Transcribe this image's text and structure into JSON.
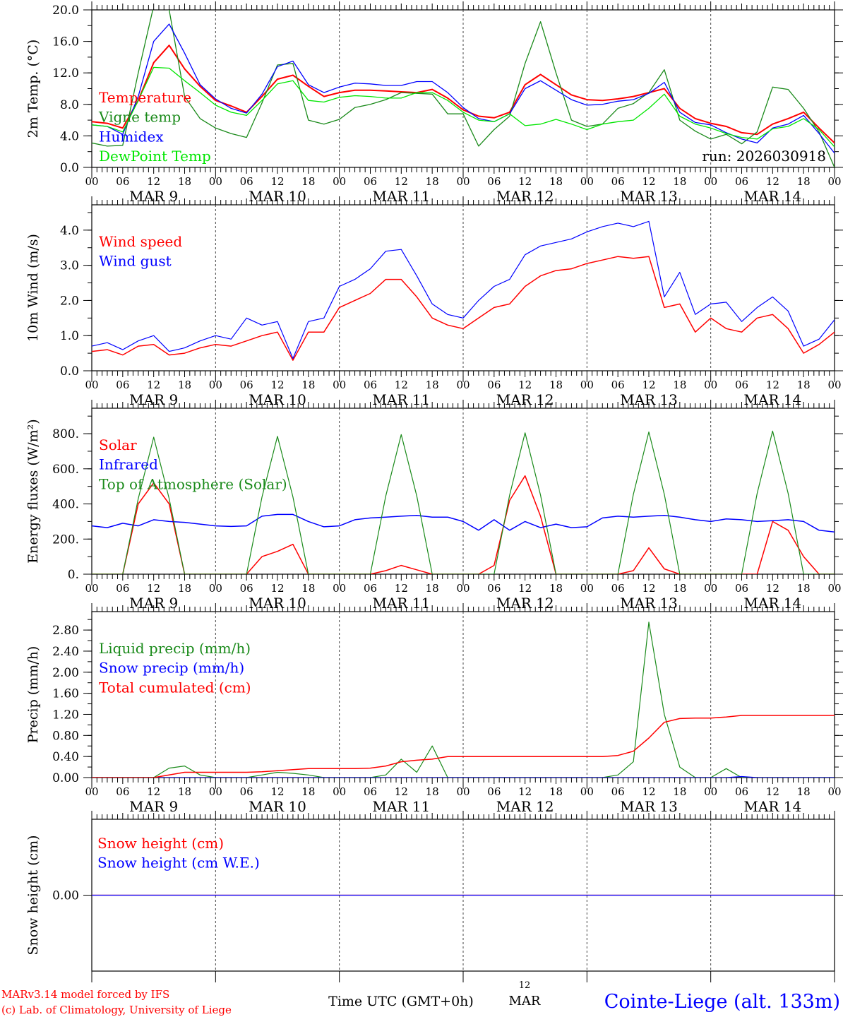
{
  "chart_data": {
    "type": "line",
    "x_hours": [
      0,
      3,
      6,
      9,
      12,
      15,
      18,
      21,
      24,
      27,
      30,
      33,
      36,
      39,
      42,
      45,
      48,
      51,
      54,
      57,
      60,
      63,
      66,
      69,
      72,
      75,
      78,
      81,
      84,
      87,
      90,
      93,
      96,
      99,
      102,
      105,
      108,
      111,
      114,
      117,
      120,
      123,
      126,
      129,
      132,
      135,
      138,
      141,
      144
    ],
    "x_tick_hours": [
      "00",
      "06",
      "12",
      "18"
    ],
    "days": [
      "MAR  9",
      "MAR 10",
      "MAR 11",
      "MAR 12",
      "MAR 13",
      "MAR 14"
    ],
    "xlabel": "Time UTC (GMT+0h)",
    "center_day_hour": "12",
    "center_day_month": "MAR",
    "panels": [
      {
        "ylabel": "2m Temp. (°C)",
        "ylim": [
          0,
          20
        ],
        "yticks": [
          0,
          4,
          8,
          12,
          16,
          20
        ],
        "ytick_labels": [
          "0.0",
          "4.0",
          "8.0",
          "12.0",
          "16.0",
          "20.0"
        ],
        "yminor": 2,
        "annotation": "run: 2026030918",
        "series": [
          {
            "name": "Temperature",
            "color": "#ff0000",
            "width": 2,
            "values": [
              5.8,
              5.6,
              5.0,
              8.5,
              13.3,
              15.5,
              12.5,
              10.3,
              8.5,
              7.8,
              7.0,
              9.0,
              11.2,
              11.7,
              10.3,
              9.0,
              9.5,
              9.8,
              9.8,
              9.7,
              9.6,
              9.5,
              9.9,
              8.8,
              7.3,
              6.5,
              6.3,
              7.0,
              10.5,
              11.8,
              10.5,
              9.2,
              8.6,
              8.5,
              8.7,
              9.0,
              9.5,
              10.0,
              7.5,
              6.2,
              5.6,
              5.2,
              4.4,
              4.2,
              5.5,
              6.2,
              7.0,
              5.0,
              3.1
            ]
          },
          {
            "name": "Vigne temp",
            "color": "#1a8a1a",
            "width": 1.3,
            "values": [
              3.1,
              2.7,
              2.8,
              12.0,
              20.5,
              20.0,
              9.0,
              6.2,
              5.0,
              4.3,
              3.8,
              8.2,
              13.0,
              13.2,
              6.0,
              5.5,
              6.1,
              7.6,
              8.0,
              8.6,
              9.5,
              9.4,
              9.3,
              6.8,
              6.8,
              2.7,
              4.8,
              6.5,
              13.2,
              18.5,
              12.0,
              6.0,
              5.2,
              5.5,
              7.5,
              8.1,
              9.5,
              12.4,
              6.0,
              4.6,
              3.6,
              4.2,
              3.0,
              4.5,
              10.2,
              9.9,
              7.5,
              4.5,
              0
            ]
          },
          {
            "name": "Humidex",
            "color": "#0000ff",
            "width": 1.3,
            "values": [
              5.4,
              5.2,
              4.2,
              9.0,
              16.0,
              18.2,
              14.5,
              10.5,
              8.7,
              7.5,
              6.9,
              9.3,
              12.8,
              13.5,
              10.5,
              9.5,
              10.2,
              10.7,
              10.6,
              10.4,
              10.4,
              10.9,
              10.9,
              9.5,
              7.6,
              6.2,
              5.8,
              6.8,
              10.0,
              11.0,
              9.8,
              8.6,
              7.9,
              8.0,
              8.4,
              8.6,
              9.4,
              10.8,
              7.0,
              5.7,
              5.4,
              4.4,
              3.6,
              3.1,
              5.0,
              5.5,
              6.6,
              4.3,
              1.8
            ]
          },
          {
            "name": "DewPoint Temp",
            "color": "#00e600",
            "width": 1.3,
            "values": [
              5.4,
              5.2,
              4.5,
              8.5,
              12.7,
              12.6,
              11.0,
              9.5,
              7.9,
              7.0,
              6.6,
              8.5,
              10.6,
              11.0,
              8.5,
              8.3,
              8.9,
              9.1,
              9.0,
              8.8,
              8.8,
              9.5,
              9.5,
              8.5,
              7.0,
              6.0,
              5.8,
              6.8,
              5.3,
              5.5,
              6.1,
              5.5,
              4.8,
              5.5,
              5.8,
              6.0,
              7.5,
              9.3,
              6.5,
              5.5,
              5.0,
              4.3,
              3.8,
              3.6,
              4.9,
              5.2,
              6.2,
              4.8,
              2.6
            ]
          }
        ]
      },
      {
        "ylabel": "10m Wind (m/s)",
        "ylim": [
          0,
          4.72
        ],
        "yticks": [
          0,
          1,
          2,
          3,
          4
        ],
        "ytick_labels": [
          "0.0",
          "1.0",
          "2.0",
          "3.0",
          "4.0"
        ],
        "yminor": 0.5,
        "series": [
          {
            "name": "Wind speed",
            "color": "#ff0000",
            "width": 1.5,
            "values": [
              0.55,
              0.6,
              0.45,
              0.7,
              0.75,
              0.45,
              0.5,
              0.65,
              0.75,
              0.7,
              0.85,
              1.0,
              1.1,
              0.3,
              1.1,
              1.1,
              1.8,
              2.0,
              2.2,
              2.6,
              2.6,
              2.1,
              1.5,
              1.3,
              1.2,
              1.5,
              1.8,
              1.9,
              2.4,
              2.7,
              2.85,
              2.9,
              3.05,
              3.15,
              3.25,
              3.2,
              3.25,
              1.8,
              1.9,
              1.1,
              1.5,
              1.2,
              1.1,
              1.5,
              1.6,
              1.2,
              0.5,
              0.75,
              1.1
            ]
          },
          {
            "name": "Wind gust",
            "color": "#0000ff",
            "width": 1.2,
            "values": [
              0.7,
              0.8,
              0.6,
              0.85,
              1.0,
              0.55,
              0.65,
              0.85,
              1.0,
              0.9,
              1.5,
              1.3,
              1.4,
              0.35,
              1.4,
              1.5,
              2.4,
              2.6,
              2.9,
              3.4,
              3.45,
              2.7,
              1.9,
              1.6,
              1.5,
              2.0,
              2.4,
              2.6,
              3.3,
              3.55,
              3.65,
              3.75,
              3.95,
              4.1,
              4.2,
              4.1,
              4.25,
              2.1,
              2.8,
              1.6,
              1.9,
              1.95,
              1.4,
              1.8,
              2.1,
              1.7,
              0.7,
              0.9,
              1.45
            ]
          }
        ]
      },
      {
        "ylabel": "Energy fluxes (W/m²)",
        "ylim": [
          0,
          945
        ],
        "yticks": [
          0,
          200,
          400,
          600,
          800
        ],
        "ytick_labels": [
          "0.",
          "200.",
          "400.",
          "600.",
          "800."
        ],
        "yminor": 100,
        "series": [
          {
            "name": "Solar",
            "color": "#ff0000",
            "width": 1.5,
            "values": [
              0,
              0,
              0,
              400,
              520,
              400,
              0,
              0,
              0,
              0,
              0,
              100,
              130,
              170,
              0,
              0,
              0,
              0,
              0,
              20,
              50,
              25,
              0,
              0,
              0,
              0,
              50,
              420,
              560,
              330,
              0,
              0,
              0,
              0,
              0,
              20,
              150,
              30,
              0,
              0,
              0,
              0,
              0,
              0,
              300,
              250,
              100,
              0,
              0
            ]
          },
          {
            "name": "Infrared",
            "color": "#0000ff",
            "width": 1.5,
            "values": [
              275,
              265,
              290,
              275,
              310,
              300,
              295,
              285,
              275,
              272,
              275,
              330,
              340,
              340,
              300,
              270,
              275,
              310,
              320,
              325,
              330,
              335,
              325,
              325,
              300,
              250,
              310,
              250,
              300,
              265,
              285,
              265,
              270,
              320,
              330,
              325,
              330,
              335,
              325,
              310,
              300,
              315,
              310,
              300,
              305,
              310,
              300,
              250,
              240
            ]
          },
          {
            "name": "Top of Atmosphere (Solar)",
            "color": "#1a8a1a",
            "width": 1.2,
            "values": [
              0,
              0,
              0,
              430,
              780,
              430,
              0,
              0,
              0,
              0,
              0,
              440,
              785,
              440,
              0,
              0,
              0,
              0,
              0,
              445,
              795,
              445,
              0,
              0,
              0,
              0,
              0,
              450,
              805,
              450,
              0,
              0,
              0,
              0,
              0,
              455,
              810,
              455,
              0,
              0,
              0,
              0,
              0,
              460,
              815,
              460,
              0,
              0,
              0
            ]
          }
        ]
      },
      {
        "ylabel": "Precip (mm/h)",
        "ylim": [
          0,
          3.15
        ],
        "yticks": [
          0,
          0.4,
          0.8,
          1.2,
          1.6,
          2.0,
          2.4,
          2.8
        ],
        "ytick_labels": [
          "0.00",
          "0.40",
          "0.80",
          "1.20",
          "1.60",
          "2.00",
          "2.40",
          "2.80"
        ],
        "yminor": 0.2,
        "series": [
          {
            "name": "Liquid precip (mm/h)",
            "color": "#1a8a1a",
            "width": 1.2,
            "values": [
              0,
              0,
              0,
              0,
              0,
              0.18,
              0.22,
              0.05,
              0,
              0,
              0,
              0.05,
              0.1,
              0.08,
              0.05,
              0,
              0,
              0,
              0,
              0.05,
              0.35,
              0.1,
              0.6,
              0,
              0,
              0,
              0,
              0,
              0,
              0,
              0,
              0,
              0,
              0,
              0.05,
              0.3,
              2.95,
              1.2,
              0.2,
              0,
              0,
              0.17,
              0,
              0,
              0,
              0,
              0,
              0,
              0
            ]
          },
          {
            "name": "Snow precip (mm/h)",
            "color": "#0000ff",
            "width": 1.2,
            "values": [
              0,
              0,
              0,
              0,
              0,
              0,
              0,
              0,
              0,
              0,
              0,
              0,
              0,
              0,
              0,
              0,
              0,
              0,
              0,
              0,
              0,
              0,
              0,
              0,
              0,
              0,
              0,
              0,
              0,
              0,
              0,
              0,
              0,
              0,
              0,
              0,
              0,
              0,
              0,
              0,
              0,
              0,
              0.02,
              0,
              0,
              0,
              0,
              0,
              0
            ]
          },
          {
            "name": "Total cumulated (cm)",
            "color": "#ff0000",
            "width": 1.5,
            "values": [
              0,
              0,
              0,
              0,
              0,
              0.05,
              0.1,
              0.1,
              0.1,
              0.1,
              0.1,
              0.11,
              0.13,
              0.15,
              0.17,
              0.17,
              0.17,
              0.17,
              0.18,
              0.22,
              0.3,
              0.33,
              0.35,
              0.4,
              0.4,
              0.4,
              0.4,
              0.4,
              0.4,
              0.4,
              0.4,
              0.4,
              0.4,
              0.4,
              0.42,
              0.5,
              0.75,
              1.05,
              1.12,
              1.13,
              1.13,
              1.15,
              1.18,
              1.18,
              1.18,
              1.18,
              1.18,
              1.18,
              1.18
            ]
          }
        ]
      },
      {
        "ylabel": "Snow height (cm)",
        "ylim": [
          -1,
          1
        ],
        "yticks": [
          0
        ],
        "ytick_labels": [
          "0.00"
        ],
        "yminor": 0,
        "series": [
          {
            "name": "Snow height (cm)",
            "color": "#ff0000",
            "width": 1.3,
            "values": [
              0,
              0,
              0,
              0,
              0,
              0,
              0,
              0,
              0,
              0,
              0,
              0,
              0,
              0,
              0,
              0,
              0,
              0,
              0,
              0,
              0,
              0,
              0,
              0,
              0,
              0,
              0,
              0,
              0,
              0,
              0,
              0,
              0,
              0,
              0,
              0,
              0,
              0,
              0,
              0,
              0,
              0,
              0,
              0,
              0,
              0,
              0,
              0,
              0
            ]
          },
          {
            "name": "Snow height (cm W.E.)",
            "color": "#0000ff",
            "width": 1.3,
            "values": [
              0,
              0,
              0,
              0,
              0,
              0,
              0,
              0,
              0,
              0,
              0,
              0,
              0,
              0,
              0,
              0,
              0,
              0,
              0,
              0,
              0,
              0,
              0,
              0,
              0,
              0,
              0,
              0,
              0,
              0,
              0,
              0,
              0,
              0,
              0,
              0,
              0,
              0,
              0,
              0,
              0,
              0,
              0,
              0,
              0,
              0,
              0,
              0,
              0
            ]
          }
        ]
      }
    ]
  },
  "footer": {
    "model_line": "MARv3.14 model forced by IFS",
    "credit_line": "(c) Lab. of Climatology, University of Liege",
    "station": "Cointe-Liege (alt. 133m)",
    "colors": {
      "model": "#ff0000",
      "station": "#0000ff"
    }
  }
}
